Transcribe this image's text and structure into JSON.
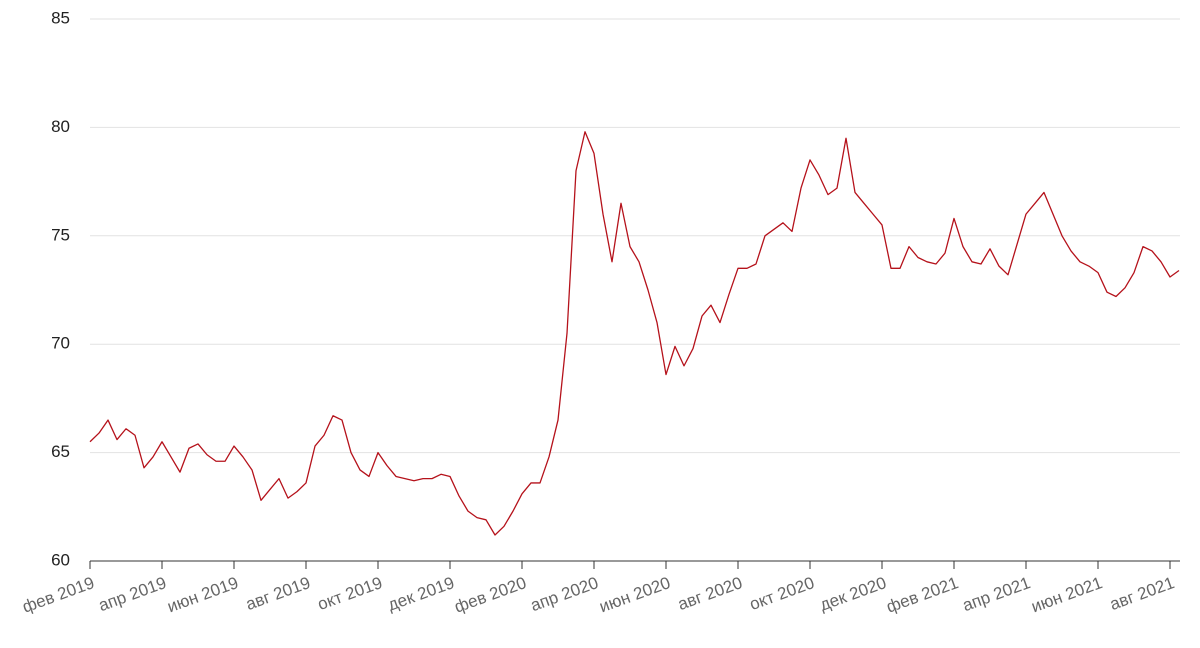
{
  "chart_data": {
    "type": "line",
    "categories": [
      "фев 2019",
      null,
      null,
      null,
      null,
      null,
      null,
      null,
      "апр 2019",
      null,
      null,
      null,
      null,
      null,
      null,
      null,
      "июн 2019",
      null,
      null,
      null,
      null,
      null,
      null,
      null,
      "авг 2019",
      null,
      null,
      null,
      null,
      null,
      null,
      null,
      "окт 2019",
      null,
      null,
      null,
      null,
      null,
      null,
      null,
      "дек 2019",
      null,
      null,
      null,
      null,
      null,
      null,
      null,
      "фев 2020",
      null,
      null,
      null,
      null,
      null,
      null,
      null,
      "апр 2020",
      null,
      null,
      null,
      null,
      null,
      null,
      null,
      "июн 2020",
      null,
      null,
      null,
      null,
      null,
      null,
      null,
      "авг 2020",
      null,
      null,
      null,
      null,
      null,
      null,
      null,
      "окт 2020",
      null,
      null,
      null,
      null,
      null,
      null,
      null,
      "дек 2020",
      null,
      null,
      null,
      null,
      null,
      null,
      null,
      "фев 2021",
      null,
      null,
      null,
      null,
      null,
      null,
      null,
      "апр 2021",
      null,
      null,
      null,
      null,
      null,
      null,
      null,
      "июн 2021",
      null,
      null,
      null,
      null,
      null,
      null,
      null,
      "авг 2021",
      null
    ],
    "series": [
      {
        "color": "#b5121b",
        "values": [
          65.5,
          65.9,
          66.5,
          65.6,
          66.1,
          65.8,
          64.3,
          64.8,
          65.5,
          64.8,
          64.1,
          65.2,
          65.4,
          64.9,
          64.6,
          64.6,
          65.3,
          64.8,
          64.2,
          62.8,
          63.3,
          63.8,
          62.9,
          63.2,
          63.6,
          65.3,
          65.8,
          66.7,
          66.5,
          65.0,
          64.2,
          63.9,
          65.0,
          64.4,
          63.9,
          63.8,
          63.7,
          63.8,
          63.8,
          64.0,
          63.9,
          63.0,
          62.3,
          62.0,
          61.9,
          61.2,
          61.6,
          62.3,
          63.1,
          63.6,
          63.6,
          64.8,
          66.5,
          70.5,
          78.0,
          79.8,
          78.8,
          76.0,
          73.8,
          76.5,
          74.5,
          73.8,
          72.5,
          71.0,
          68.6,
          69.9,
          69.0,
          69.8,
          71.3,
          71.8,
          71.0,
          72.3,
          73.5,
          73.5,
          73.7,
          75.0,
          75.3,
          75.6,
          75.2,
          77.2,
          78.5,
          77.8,
          76.9,
          77.2,
          79.5,
          77.0,
          76.5,
          76.0,
          75.5,
          73.5,
          73.5,
          74.5,
          74.0,
          73.8,
          73.7,
          74.2,
          75.8,
          74.5,
          73.8,
          73.7,
          74.4,
          73.6,
          73.2,
          74.6,
          76.0,
          76.5,
          77.0,
          76.0,
          75.0,
          74.3,
          73.8,
          73.6,
          73.3,
          72.4,
          72.2,
          72.6,
          73.3,
          74.5,
          74.3,
          73.8,
          73.1,
          73.4
        ]
      }
    ],
    "ylim": [
      60,
      85
    ],
    "yticks": [
      60,
      65,
      70,
      75,
      80,
      85
    ],
    "grid": true
  }
}
